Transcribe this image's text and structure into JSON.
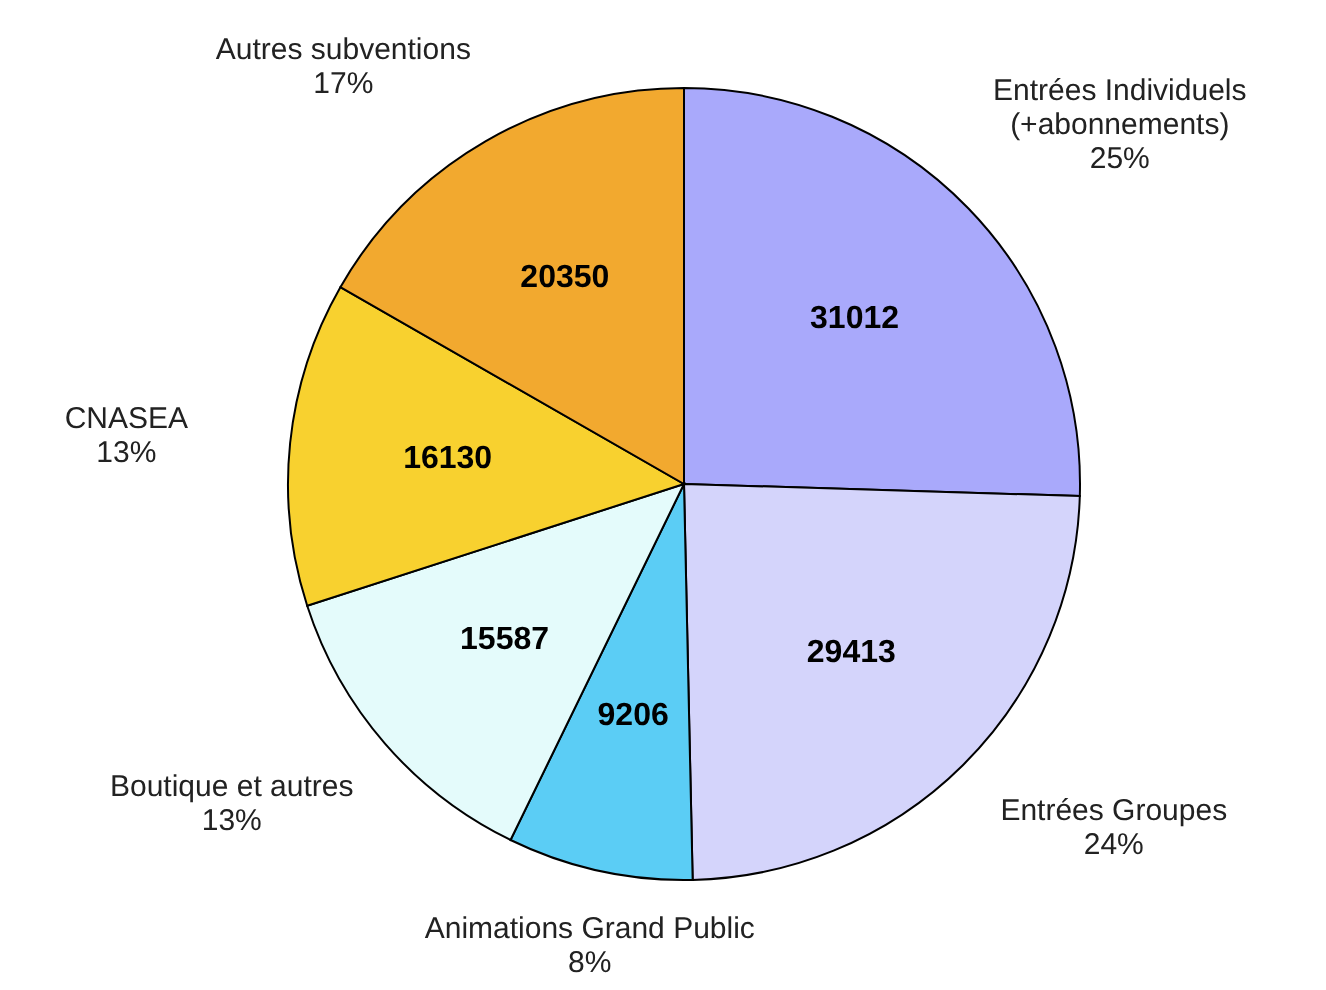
{
  "chart_data": {
    "type": "pie",
    "categories": [
      "Entrées Individuels\n(+abonnements)",
      "Entrées Groupes",
      "Animations Grand Public",
      "Boutique et autres",
      "CNASEA",
      "Autres subventions"
    ],
    "values": [
      31012,
      29413,
      9206,
      15587,
      16130,
      20350
    ],
    "colors": [
      "#a9a9fb",
      "#d4d4fb",
      "#5bcdf5",
      "#e4fbfb",
      "#f8d12f",
      "#f2a92f"
    ],
    "data_labels": true,
    "annotations": [
      "25%",
      "24%",
      "8%",
      "13%",
      "13%",
      "17%"
    ]
  }
}
